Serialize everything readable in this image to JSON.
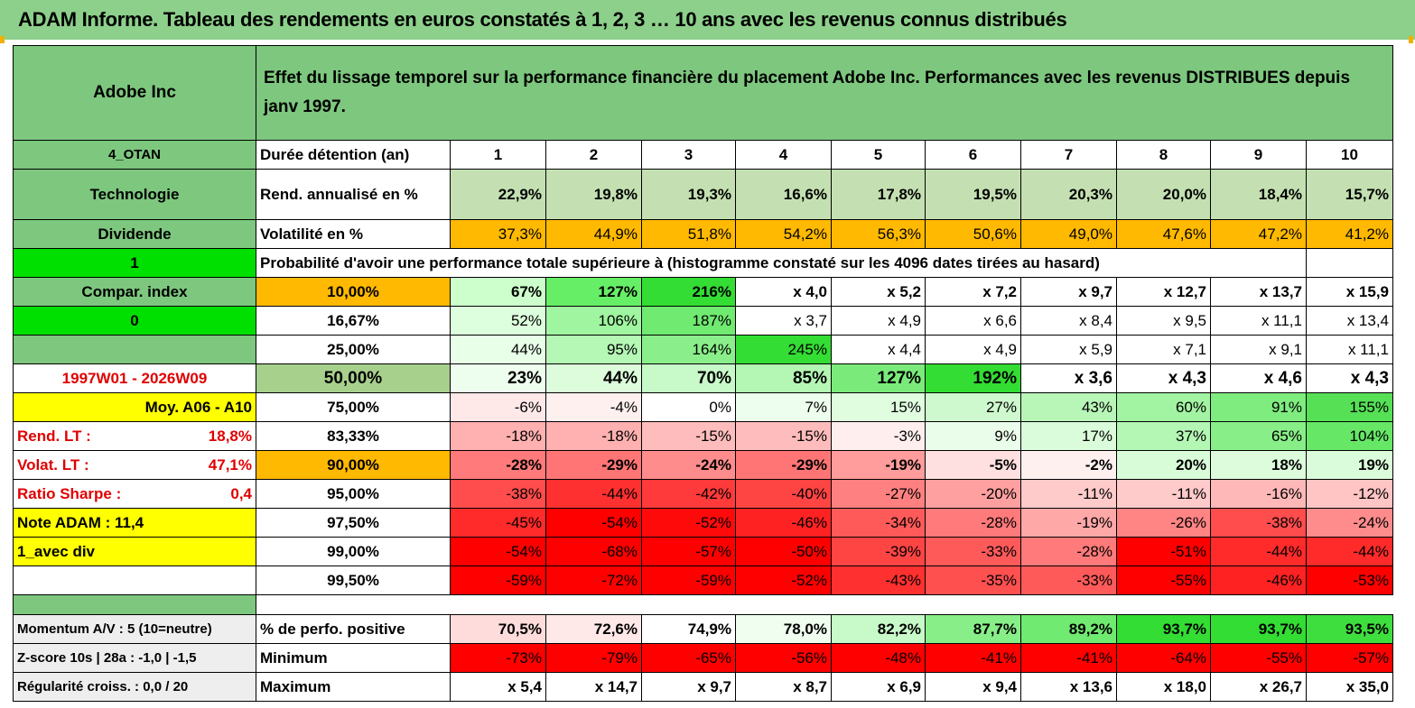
{
  "title": "ADAM Informe. Tableau des rendements en euros constatés à 1, 2, 3 … 10 ans avec les revenus connus distribués",
  "header": {
    "name": "Adobe Inc",
    "description": "Effet du lissage temporel sur la performance financière du placement Adobe Inc. Performances avec les revenus DISTRIBUES depuis janv 1997."
  },
  "left": {
    "code": "4_OTAN",
    "sector": "Technologie",
    "type": "Dividende",
    "flag1": "1",
    "compar": "Compar. index",
    "flag0": "0",
    "period": "1997W01 - 2026W09",
    "moy": "Moy. A06 - A10",
    "rend_label": "Rend. LT :",
    "rend_value": "18,8%",
    "volat_label": "Volat. LT :",
    "volat_value": "47,1%",
    "sharpe_label": "Ratio Sharpe :",
    "sharpe_value": "0,4",
    "note": "Note ADAM : 11,4",
    "div": "1_avec div",
    "momentum": "Momentum A/V : 5 (10=neutre)",
    "zscore": "Z-score 10s | 28a : -1,0 | -1,5",
    "regularite": "Régularité croiss. : 0,0 / 20"
  },
  "labels": {
    "duree": "Durée détention (an)",
    "rend": "Rend. annualisé en %",
    "volat": "Volatilité en %",
    "proba": "Probabilité d'avoir une performance totale supérieure à (histogramme constaté sur les 4096 dates tirées au hasard)",
    "positive": "% de perfo. positive",
    "minimum": "Minimum",
    "maximum": "Maximum"
  },
  "years": [
    "1",
    "2",
    "3",
    "4",
    "5",
    "6",
    "7",
    "8",
    "9",
    "10"
  ],
  "rend": [
    "22,9%",
    "19,8%",
    "19,3%",
    "16,6%",
    "17,8%",
    "19,5%",
    "20,3%",
    "20,0%",
    "18,4%",
    "15,7%"
  ],
  "volat": [
    "37,3%",
    "44,9%",
    "51,8%",
    "54,2%",
    "56,3%",
    "50,6%",
    "49,0%",
    "47,6%",
    "47,2%",
    "41,2%"
  ],
  "prob_rows": [
    {
      "p": "10,00%",
      "v": [
        "67%",
        "127%",
        "216%",
        "x 4,0",
        "x 5,2",
        "x 7,2",
        "x 9,7",
        "x 12,7",
        "x 13,7",
        "x 15,9"
      ]
    },
    {
      "p": "16,67%",
      "v": [
        "52%",
        "106%",
        "187%",
        "x 3,7",
        "x 4,9",
        "x 6,6",
        "x 8,4",
        "x 9,5",
        "x 11,1",
        "x 13,4"
      ]
    },
    {
      "p": "25,00%",
      "v": [
        "44%",
        "95%",
        "164%",
        "245%",
        "x 4,4",
        "x 4,9",
        "x 5,9",
        "x 7,1",
        "x 9,1",
        "x 11,1"
      ]
    },
    {
      "p": "50,00%",
      "v": [
        "23%",
        "44%",
        "70%",
        "85%",
        "127%",
        "192%",
        "x 3,6",
        "x 4,3",
        "x 4,6",
        "x 4,3"
      ]
    },
    {
      "p": "75,00%",
      "v": [
        "-6%",
        "-4%",
        "0%",
        "7%",
        "15%",
        "27%",
        "43%",
        "60%",
        "91%",
        "155%"
      ]
    },
    {
      "p": "83,33%",
      "v": [
        "-18%",
        "-18%",
        "-15%",
        "-15%",
        "-3%",
        "9%",
        "17%",
        "37%",
        "65%",
        "104%"
      ]
    },
    {
      "p": "90,00%",
      "v": [
        "-28%",
        "-29%",
        "-24%",
        "-29%",
        "-19%",
        "-5%",
        "-2%",
        "20%",
        "18%",
        "19%"
      ]
    },
    {
      "p": "95,00%",
      "v": [
        "-38%",
        "-44%",
        "-42%",
        "-40%",
        "-27%",
        "-20%",
        "-11%",
        "-11%",
        "-16%",
        "-12%"
      ]
    },
    {
      "p": "97,50%",
      "v": [
        "-45%",
        "-54%",
        "-52%",
        "-46%",
        "-34%",
        "-28%",
        "-19%",
        "-26%",
        "-38%",
        "-24%"
      ]
    },
    {
      "p": "99,00%",
      "v": [
        "-54%",
        "-68%",
        "-57%",
        "-50%",
        "-39%",
        "-33%",
        "-28%",
        "-51%",
        "-44%",
        "-44%"
      ]
    },
    {
      "p": "99,50%",
      "v": [
        "-59%",
        "-72%",
        "-59%",
        "-52%",
        "-43%",
        "-35%",
        "-33%",
        "-55%",
        "-46%",
        "-53%"
      ]
    }
  ],
  "positive": [
    "70,5%",
    "72,6%",
    "74,9%",
    "78,0%",
    "82,2%",
    "87,7%",
    "89,2%",
    "93,7%",
    "93,7%",
    "93,5%"
  ],
  "minimum": [
    "-73%",
    "-79%",
    "-65%",
    "-56%",
    "-48%",
    "-41%",
    "-41%",
    "-64%",
    "-55%",
    "-57%"
  ],
  "maximum": [
    "x 5,4",
    "x 14,7",
    "x 9,7",
    "x 8,7",
    "x 6,9",
    "x 9,4",
    "x 13,6",
    "x 18,0",
    "x 26,7",
    "x 35,0"
  ],
  "colors": {
    "header_green": "#7dc77e",
    "light_green": "#a8d08d",
    "bright_green": "#00e000",
    "yellow": "#ffff00",
    "orange": "#ffb900",
    "red_text": "#e00000",
    "pos_green": "#33dd33",
    "neg_red": "#ff0000"
  },
  "prob_colors": [
    [
      "#ccffcc",
      "#66ee66",
      "#33dd33",
      "#ffffff",
      "#ffffff",
      "#ffffff",
      "#ffffff",
      "#ffffff",
      "#ffffff",
      "#ffffff"
    ],
    [
      "#ddffdd",
      "#a0f5a0",
      "#70ea70",
      "#ffffff",
      "#ffffff",
      "#ffffff",
      "#ffffff",
      "#ffffff",
      "#ffffff",
      "#ffffff"
    ],
    [
      "#e8ffe8",
      "#b5f7b5",
      "#8aef8a",
      "#33dd33",
      "#ffffff",
      "#ffffff",
      "#ffffff",
      "#ffffff",
      "#ffffff",
      "#ffffff"
    ],
    [
      "#eefeee",
      "#dcfcdc",
      "#c8f9c8",
      "#b4f6b4",
      "#7aeb7a",
      "#33dd33",
      "#ffffff",
      "#ffffff",
      "#ffffff",
      "#ffffff"
    ],
    [
      "#ffe8e8",
      "#fff0f0",
      "#ffffff",
      "#eefeee",
      "#e0fde0",
      "#cef9ce",
      "#b8f6b8",
      "#a2f3a2",
      "#7fec7f",
      "#55e055"
    ],
    [
      "#ffb0b0",
      "#ffb0b0",
      "#ffbcbc",
      "#ffbcbc",
      "#ffeeee",
      "#eafdea",
      "#dafcda",
      "#b4f6b4",
      "#88ee88",
      "#66e766"
    ],
    [
      "#ff7a7a",
      "#ff7575",
      "#ff8c8c",
      "#ff7575",
      "#ff9c9c",
      "#ffe0e0",
      "#fff0f0",
      "#d8fbd8",
      "#dcfcdc",
      "#dafcda"
    ],
    [
      "#ff4c4c",
      "#ff3030",
      "#ff3a3a",
      "#ff4444",
      "#ff8080",
      "#ffa0a0",
      "#ffcaca",
      "#ffcaca",
      "#ffb8b8",
      "#ffc4c4"
    ],
    [
      "#ff2a2a",
      "#ff0000",
      "#ff0a0a",
      "#ff2222",
      "#ff5a5a",
      "#ff7a7a",
      "#ffa8a8",
      "#ff8484",
      "#ff4c4c",
      "#ff8c8c"
    ],
    [
      "#ff0000",
      "#ff0000",
      "#ff0000",
      "#ff0000",
      "#ff4444",
      "#ff5a5a",
      "#ff7a7a",
      "#ff0000",
      "#ff2a2a",
      "#ff2a2a"
    ],
    [
      "#ff0000",
      "#ff0000",
      "#ff0000",
      "#ff0000",
      "#ff3030",
      "#ff5050",
      "#ff5a5a",
      "#ff0000",
      "#ff2222",
      "#ff0000"
    ]
  ],
  "positive_colors": [
    "#ffdcdc",
    "#ffe8e8",
    "#ffffff",
    "#f0fef0",
    "#c8f9c8",
    "#88ee88",
    "#70ea70",
    "#33dd33",
    "#33dd33",
    "#3fde3f"
  ],
  "minimum_colors": [
    "#ff0000",
    "#ff0000",
    "#ff0000",
    "#ff0000",
    "#ff0000",
    "#ff0000",
    "#ff0000",
    "#ff0000",
    "#ff0000",
    "#ff0000"
  ]
}
